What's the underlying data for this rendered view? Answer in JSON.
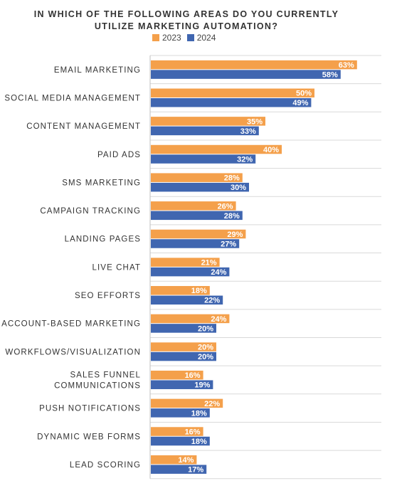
{
  "chart_data": {
    "type": "bar",
    "orientation": "horizontal",
    "title": "IN WHICH OF THE FOLLOWING AREAS DO YOU CURRENTLY UTILIZE MARKETING AUTOMATION?",
    "title_lines": [
      "IN WHICH OF THE FOLLOWING AREAS DO YOU CURRENTLY",
      "UTILIZE MARKETING AUTOMATION?"
    ],
    "xlim": [
      0,
      100
    ],
    "grid": "horizontal separators",
    "legend_position": "top",
    "categories": [
      "EMAIL MARKETING",
      "SOCIAL MEDIA MANAGEMENT",
      "CONTENT MANAGEMENT",
      "PAID ADS",
      "SMS MARKETING",
      "CAMPAIGN TRACKING",
      "LANDING PAGES",
      "LIVE CHAT",
      "SEO EFFORTS",
      "ACCOUNT-BASED MARKETING",
      "WORKFLOWS/VISUALIZATION",
      "SALES FUNNEL COMMUNICATIONS",
      "PUSH NOTIFICATIONS",
      "DYNAMIC WEB FORMS",
      "LEAD SCORING"
    ],
    "category_lines": [
      [
        "EMAIL MARKETING"
      ],
      [
        "SOCIAL MEDIA MANAGEMENT"
      ],
      [
        "CONTENT MANAGEMENT"
      ],
      [
        "PAID ADS"
      ],
      [
        "SMS MARKETING"
      ],
      [
        "CAMPAIGN TRACKING"
      ],
      [
        "LANDING PAGES"
      ],
      [
        "LIVE CHAT"
      ],
      [
        "SEO EFFORTS"
      ],
      [
        "ACCOUNT-BASED MARKETING"
      ],
      [
        "WORKFLOWS/VISUALIZATION"
      ],
      [
        "SALES FUNNEL",
        "COMMUNICATIONS"
      ],
      [
        "PUSH NOTIFICATIONS"
      ],
      [
        "DYNAMIC WEB FORMS"
      ],
      [
        "LEAD SCORING"
      ]
    ],
    "series": [
      {
        "name": "2023",
        "color": "#F4A04B",
        "values": [
          63,
          50,
          35,
          40,
          28,
          26,
          29,
          21,
          18,
          24,
          20,
          16,
          22,
          16,
          14
        ]
      },
      {
        "name": "2024",
        "color": "#4066B0",
        "values": [
          58,
          49,
          33,
          32,
          30,
          28,
          27,
          24,
          22,
          20,
          20,
          19,
          18,
          18,
          17
        ]
      }
    ],
    "value_suffix": "%"
  }
}
